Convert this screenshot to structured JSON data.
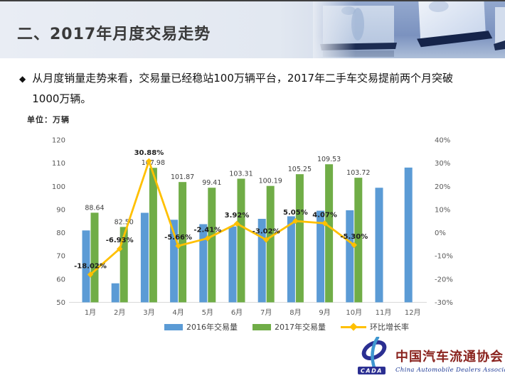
{
  "slide": {
    "title": "二、2017年月度交易走势",
    "bullet": {
      "marker": "◆",
      "line1": "从月度销量走势来看，交易量已经稳站100万辆平台，2017年二手车交易提前两个月突破",
      "line2": "1000万辆。"
    },
    "unit_label": "单位：万辆"
  },
  "chart_data": {
    "type": "bar",
    "subtype": "combo-bar-line",
    "categories": [
      "1月",
      "2月",
      "3月",
      "4月",
      "5月",
      "6月",
      "7月",
      "8月",
      "9月",
      "10月",
      "11月",
      "12月"
    ],
    "series": [
      {
        "name": "2016年交易量",
        "type": "bar",
        "axis": "left",
        "color": "#5B9BD5",
        "values": [
          81.0,
          58.2,
          88.6,
          85.6,
          83.7,
          82.7,
          86.0,
          87.1,
          89.5,
          89.7,
          99.4,
          108.1
        ]
      },
      {
        "name": "2017年交易量",
        "type": "bar",
        "axis": "left",
        "color": "#70AD47",
        "values": [
          88.64,
          82.5,
          107.98,
          101.87,
          99.41,
          103.31,
          100.19,
          105.25,
          109.53,
          103.72,
          null,
          null
        ],
        "data_labels": [
          "88.64",
          "82.50",
          "107.98",
          "101.87",
          "99.41",
          "103.31",
          "100.19",
          "105.25",
          "109.53",
          "103.72",
          null,
          null
        ]
      },
      {
        "name": "环比增长率",
        "type": "line",
        "axis": "right",
        "color": "#FFC000",
        "values_pct": [
          -18.02,
          -6.93,
          30.88,
          -5.66,
          -2.41,
          3.92,
          -3.02,
          5.05,
          4.07,
          -5.3,
          null,
          null
        ],
        "data_labels": [
          "-18.02%",
          "-6.93%",
          "30.88%",
          "-5.66%",
          "-2.41%",
          "3.92%",
          "-3.02%",
          "5.05%",
          "4.07%",
          "-5.30%",
          null,
          null
        ]
      }
    ],
    "left_axis": {
      "min": 50,
      "max": 120,
      "tick_labels": [
        "120",
        "110",
        "100",
        "90",
        "80",
        "70",
        "60",
        "50"
      ]
    },
    "right_axis": {
      "min": -30,
      "max": 40,
      "tick_labels": [
        "40%",
        "30%",
        "20%",
        "10%",
        "0%",
        "-10%",
        "-20%",
        "-30%"
      ]
    },
    "legend": {
      "position": "bottom",
      "items": [
        "2016年交易量",
        "2017年交易量",
        "环比增长率"
      ]
    },
    "grid": false,
    "title": "2017年月度交易走势",
    "ylabel": "单位：万辆"
  },
  "logo": {
    "cada": "CADA",
    "org_cn": "中国汽车流通协会",
    "org_en": "China Automobile Dealers Association"
  },
  "colors": {
    "bar_2016": "#5B9BD5",
    "bar_2017": "#70AD47",
    "growth_line": "#FFC000",
    "banner_right_blue": "#7e95c1",
    "logo_red": "#8a231e",
    "logo_blue": "#1e3a96"
  }
}
